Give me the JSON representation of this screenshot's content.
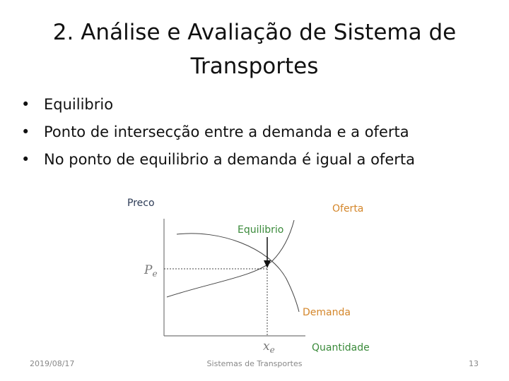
{
  "header": {
    "title_line1": "2. Análise e Avaliação de Sistema de",
    "title_line2": "Transportes"
  },
  "bullets": [
    "Equilibrio",
    "Ponto de intersecção entre a demanda e a oferta",
    "No ponto de equilibrio a demanda é igual a oferta"
  ],
  "diagram": {
    "y_axis_label": "Preco",
    "x_axis_label": "Quantidade",
    "supply_label": "Oferta",
    "demand_label": "Demanda",
    "equilibrium_label": "Equilibrio",
    "price_marker": {
      "main": "P",
      "sub": "e"
    },
    "quantity_marker": {
      "main": "x",
      "sub": "e"
    }
  },
  "footer": {
    "date": "2019/08/17",
    "center": "Sistemas de Transportes",
    "page": "13"
  }
}
